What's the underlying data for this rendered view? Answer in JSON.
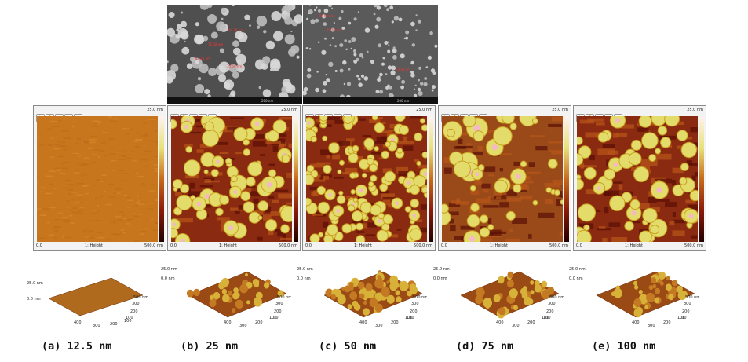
{
  "sem": {
    "left": {
      "annotations": [
        "64.28 nm",
        "71.58 nm",
        "87.18 nm",
        "35.59 nm"
      ],
      "scale": "200 nm"
    },
    "right": {
      "annotations": [
        "29.40 nm",
        "40.58 nm",
        "23.48 nm"
      ],
      "scale": "200 nm"
    }
  },
  "afm": {
    "z_max": "25.0 nm",
    "x_min": "0.0",
    "x_max": "500.0 nm",
    "channel": "1: Height",
    "palette": [
      "#fff2f0",
      "#e8e27a",
      "#c86a1a",
      "#8a1a0a",
      "#200000"
    ],
    "toolbar_icons": [
      "wand-icon",
      "hand-icon",
      "magnifier-icon",
      "zoom-in-icon",
      "zoom-out-icon"
    ]
  },
  "surface_axis": {
    "z_top": "25.0 nm",
    "z_bottom": "0.0 nm",
    "x_ticks": [
      "100",
      "200",
      "300",
      "400",
      "500 nm"
    ],
    "y_ticks": [
      "100",
      "200",
      "300",
      "400",
      "500 nm"
    ]
  },
  "captions": [
    "(a) 12.5 nm",
    "(b) 25 nm",
    "(c) 50 nm",
    "(d) 75 nm",
    "(e) 100 nm"
  ]
}
